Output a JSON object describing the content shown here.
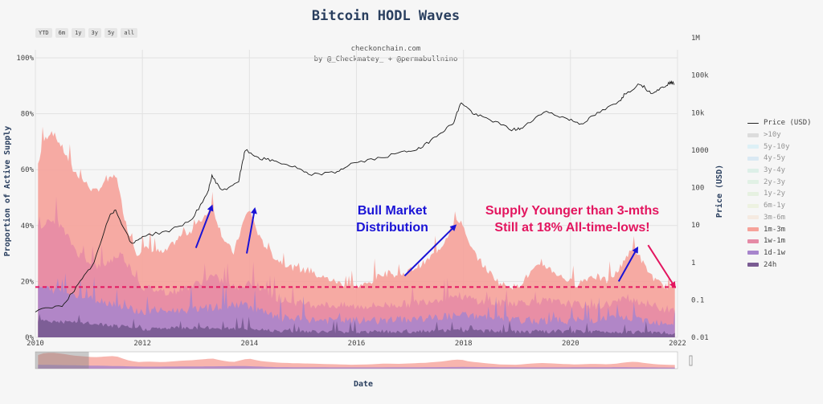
{
  "title": "Bitcoin HODL Waves",
  "range_buttons": [
    "YTD",
    "6m",
    "1y",
    "3y",
    "5y",
    "all"
  ],
  "credit": [
    "checkonchain.com",
    "by @_Checkmatey_ + @permabullnino"
  ],
  "chart_data": {
    "type": "area",
    "xlabel": "Date",
    "ylabel_left": "Proportion of Active Supply",
    "ylabel_right": "Price (USD)",
    "x_ticks": [
      "2010",
      "2012",
      "2014",
      "2016",
      "2018",
      "2020",
      "2022"
    ],
    "y_left_ticks": [
      "0%",
      "20%",
      "40%",
      "60%",
      "80%",
      "100%"
    ],
    "y_left_range": [
      0,
      100
    ],
    "y_right_ticks": [
      "0.01",
      "0.1",
      "1",
      "10",
      "100",
      "1000",
      "10k",
      "100k",
      "1M"
    ],
    "y_right_scale": "log",
    "y_right_range": [
      0.01,
      1000000
    ],
    "x_range": [
      2010.0,
      2022.0
    ],
    "grid": true,
    "legend_position": "right",
    "series_visible": [
      "1m-3m",
      "1w-1m",
      "1d-1w",
      "24h"
    ],
    "legend": [
      {
        "name": "Price (USD)",
        "color": "#222222",
        "visible": true,
        "line": true
      },
      {
        "name": ">10y",
        "color": "#bcbcbc",
        "visible": false
      },
      {
        "name": "5y-10y",
        "color": "#bfe8f7",
        "visible": false
      },
      {
        "name": "4y-5y",
        "color": "#b9d9f0",
        "visible": false
      },
      {
        "name": "3y-4y",
        "color": "#bfe6d6",
        "visible": false
      },
      {
        "name": "2y-3y",
        "color": "#c7ead1",
        "visible": false
      },
      {
        "name": "1y-2y",
        "color": "#d2ecc8",
        "visible": false
      },
      {
        "name": "6m-1y",
        "color": "#e2eec8",
        "visible": false
      },
      {
        "name": "3m-6m",
        "color": "#f4dcc7",
        "visible": false
      },
      {
        "name": "1m-3m",
        "color": "#f6a29a",
        "visible": true
      },
      {
        "name": "1w-1m",
        "color": "#e58aa6",
        "visible": true
      },
      {
        "name": "1d-1w",
        "color": "#a785cc",
        "visible": true
      },
      {
        "name": "24h",
        "color": "#7a5c93",
        "visible": true
      }
    ],
    "stack_top_pct": [
      [
        2010.05,
        62
      ],
      [
        2010.15,
        70
      ],
      [
        2010.3,
        74
      ],
      [
        2010.5,
        68
      ],
      [
        2010.7,
        60
      ],
      [
        2010.9,
        56
      ],
      [
        2011.1,
        52
      ],
      [
        2011.3,
        55
      ],
      [
        2011.5,
        58
      ],
      [
        2011.7,
        40
      ],
      [
        2011.9,
        30
      ],
      [
        2012.1,
        32
      ],
      [
        2012.4,
        30
      ],
      [
        2012.7,
        36
      ],
      [
        2012.9,
        38
      ],
      [
        2013.1,
        42
      ],
      [
        2013.3,
        47
      ],
      [
        2013.5,
        36
      ],
      [
        2013.7,
        30
      ],
      [
        2013.9,
        42
      ],
      [
        2014.0,
        46
      ],
      [
        2014.2,
        35
      ],
      [
        2014.5,
        28
      ],
      [
        2014.8,
        25
      ],
      [
        2015.0,
        24
      ],
      [
        2015.3,
        22
      ],
      [
        2015.6,
        20
      ],
      [
        2015.9,
        18
      ],
      [
        2016.2,
        19
      ],
      [
        2016.5,
        23
      ],
      [
        2016.8,
        22
      ],
      [
        2017.0,
        24
      ],
      [
        2017.3,
        27
      ],
      [
        2017.6,
        33
      ],
      [
        2017.8,
        40
      ],
      [
        2017.95,
        42
      ],
      [
        2018.1,
        33
      ],
      [
        2018.4,
        25
      ],
      [
        2018.7,
        19
      ],
      [
        2019.0,
        18
      ],
      [
        2019.3,
        24
      ],
      [
        2019.5,
        26
      ],
      [
        2019.8,
        22
      ],
      [
        2020.1,
        19
      ],
      [
        2020.4,
        22
      ],
      [
        2020.7,
        20
      ],
      [
        2020.9,
        24
      ],
      [
        2021.0,
        28
      ],
      [
        2021.2,
        32
      ],
      [
        2021.4,
        25
      ],
      [
        2021.6,
        20
      ],
      [
        2021.8,
        18
      ],
      [
        2021.95,
        17
      ]
    ],
    "bands_pct": {
      "1w-1m": [
        [
          2010.05,
          40
        ],
        [
          2010.4,
          42
        ],
        [
          2010.8,
          30
        ],
        [
          2011.2,
          25
        ],
        [
          2011.6,
          30
        ],
        [
          2012.0,
          18
        ],
        [
          2012.5,
          16
        ],
        [
          2013.0,
          19
        ],
        [
          2013.3,
          22
        ],
        [
          2013.8,
          17
        ],
        [
          2014.0,
          20
        ],
        [
          2014.5,
          14
        ],
        [
          2015.0,
          12
        ],
        [
          2016.0,
          11
        ],
        [
          2017.0,
          12
        ],
        [
          2017.9,
          15
        ],
        [
          2018.5,
          12
        ],
        [
          2019.5,
          13
        ],
        [
          2020.5,
          11
        ],
        [
          2021.1,
          14
        ],
        [
          2021.95,
          9
        ]
      ],
      "1d-1w": [
        [
          2010.05,
          18
        ],
        [
          2010.6,
          16
        ],
        [
          2011.0,
          14
        ],
        [
          2011.5,
          12
        ],
        [
          2012.0,
          9
        ],
        [
          2013.0,
          10
        ],
        [
          2013.9,
          12
        ],
        [
          2014.5,
          7
        ],
        [
          2015.5,
          6
        ],
        [
          2016.5,
          6
        ],
        [
          2017.5,
          7
        ],
        [
          2018.0,
          8
        ],
        [
          2019.0,
          6
        ],
        [
          2020.0,
          6
        ],
        [
          2021.0,
          7
        ],
        [
          2021.95,
          5
        ]
      ],
      "24h": [
        [
          2010.05,
          6
        ],
        [
          2011.0,
          5
        ],
        [
          2012.0,
          3
        ],
        [
          2013.0,
          3.5
        ],
        [
          2014.0,
          3
        ],
        [
          2015.0,
          2
        ],
        [
          2016.0,
          2
        ],
        [
          2017.0,
          2
        ],
        [
          2018.0,
          2.5
        ],
        [
          2019.0,
          2
        ],
        [
          2020.0,
          2
        ],
        [
          2021.0,
          2
        ],
        [
          2021.95,
          1.5
        ]
      ]
    },
    "price_usd": [
      [
        2010.0,
        0.05
      ],
      [
        2010.5,
        0.07
      ],
      [
        2010.8,
        0.25
      ],
      [
        2011.1,
        1
      ],
      [
        2011.4,
        20
      ],
      [
        2011.5,
        25
      ],
      [
        2011.8,
        3
      ],
      [
        2012.0,
        5
      ],
      [
        2012.5,
        7
      ],
      [
        2012.9,
        13
      ],
      [
        2013.2,
        60
      ],
      [
        2013.3,
        200
      ],
      [
        2013.5,
        80
      ],
      [
        2013.8,
        150
      ],
      [
        2013.92,
        1000
      ],
      [
        2014.2,
        600
      ],
      [
        2014.5,
        500
      ],
      [
        2014.9,
        330
      ],
      [
        2015.1,
        220
      ],
      [
        2015.6,
        250
      ],
      [
        2015.9,
        430
      ],
      [
        2016.4,
        600
      ],
      [
        2016.9,
        900
      ],
      [
        2017.2,
        1100
      ],
      [
        2017.5,
        2500
      ],
      [
        2017.8,
        5000
      ],
      [
        2017.96,
        19000
      ],
      [
        2018.2,
        9000
      ],
      [
        2018.5,
        6500
      ],
      [
        2018.9,
        3500
      ],
      [
        2019.1,
        3800
      ],
      [
        2019.5,
        11000
      ],
      [
        2019.9,
        7200
      ],
      [
        2020.2,
        5000
      ],
      [
        2020.5,
        9500
      ],
      [
        2020.9,
        19000
      ],
      [
        2021.0,
        30000
      ],
      [
        2021.3,
        60000
      ],
      [
        2021.5,
        34000
      ],
      [
        2021.7,
        45000
      ],
      [
        2021.85,
        63000
      ],
      [
        2021.95,
        60000
      ]
    ],
    "reference_line": {
      "y_pct": 18,
      "color": "#e3155f",
      "style": "dashed"
    },
    "annotations": [
      {
        "text": [
          "Bull Market",
          "Distribution"
        ],
        "color": "#1a13d6"
      },
      {
        "text": [
          "Supply Younger than 3-mths",
          "Still at 18% All-time-lows!"
        ],
        "color": "#e3155f"
      }
    ],
    "arrows": [
      {
        "from": [
          2013.0,
          32
        ],
        "to": [
          2013.3,
          47
        ],
        "color": "#1a13d6"
      },
      {
        "from": [
          2013.95,
          30
        ],
        "to": [
          2014.1,
          46
        ],
        "color": "#1a13d6"
      },
      {
        "from": [
          2016.9,
          22
        ],
        "to": [
          2017.85,
          40
        ],
        "color": "#1a13d6"
      },
      {
        "from": [
          2020.9,
          20
        ],
        "to": [
          2021.25,
          32
        ],
        "color": "#1a13d6"
      },
      {
        "from": [
          2021.45,
          33
        ],
        "to": [
          2021.95,
          18
        ],
        "color": "#e3155f"
      }
    ]
  }
}
